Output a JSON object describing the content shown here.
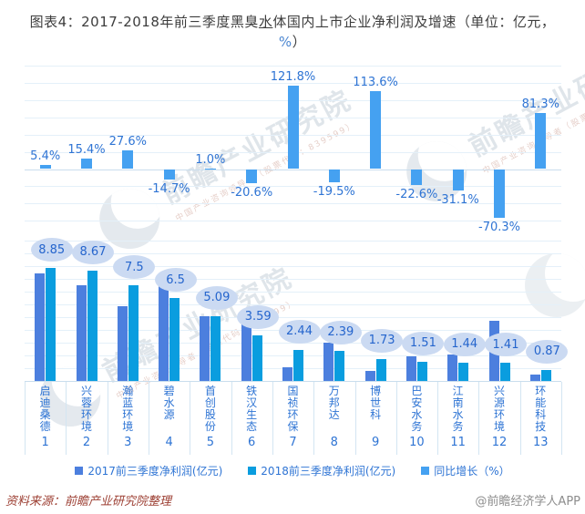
{
  "title": {
    "full": "图表4：2017-2018年前三季度黑臭水体国内上市企业净利润及增速（单位：亿元，%）",
    "part1": "图表4：2017-2018年前三季度黑臭",
    "underlined": "水",
    "part2": "体国内上市企业净利润及增速（单位：亿元，",
    "percent": "%",
    "part3": "）"
  },
  "watermark": {
    "brand": "前瞻产业研究院",
    "subtext": "中国产业咨询领导者（股票代码：839599）"
  },
  "colors": {
    "bar_2017": "#4C7FDE",
    "bar_2018": "#0A9DDF",
    "growth_bar": "#45A1F1",
    "label_blue": "#2E74D4",
    "bubble_fill": "#CBDAF2",
    "bubble_text": "#2565CD",
    "gridline": "#E4F0F9",
    "axis": "#C9DDED",
    "title_text": "#3D3D3D",
    "source_red": "#9C3E32",
    "credit_gray": "#8D8D8D"
  },
  "chart_data": [
    {
      "type": "bar",
      "name": "同比增长（%）",
      "categories": [
        "启迪桑德",
        "兴蓉环境",
        "瀚蓝环境",
        "碧水源",
        "首创股份",
        "铁汉生态",
        "国祯环保",
        "万邦达",
        "博世科",
        "巴安水务",
        "江南水务",
        "兴源环境",
        "环能科技"
      ],
      "values": [
        5.4,
        15.4,
        27.6,
        -14.7,
        1.0,
        -20.6,
        121.8,
        -19.5,
        113.6,
        -22.6,
        -31.1,
        -70.3,
        81.3
      ],
      "labels": [
        "5.4%",
        "15.4%",
        "27.6%",
        "-14.7%",
        "1.0%",
        "-20.6%",
        "121.8%",
        "-19.5%",
        "113.6%",
        "-22.6%",
        "-31.1%",
        "-70.3%",
        "81.3%"
      ],
      "ylim": [
        -75,
        150
      ],
      "grid_step": 25,
      "grid": true,
      "legend_position": "bottom"
    },
    {
      "type": "bar",
      "name": "前三季度净利润(亿元)",
      "categories": [
        "启迪桑德",
        "兴蓉环境",
        "瀚蓝环境",
        "碧水源",
        "首创股份",
        "铁汉生态",
        "国祯环保",
        "万邦达",
        "博世科",
        "巴安水务",
        "江南水务",
        "兴源环境",
        "环能科技"
      ],
      "ranks": [
        "1",
        "2",
        "3",
        "4",
        "5",
        "6",
        "7",
        "8",
        "9",
        "10",
        "11",
        "12",
        "13"
      ],
      "series": [
        {
          "name": "2017前三季度净利润(亿元)",
          "values": [
            8.4,
            7.51,
            5.88,
            7.62,
            5.04,
            4.52,
            1.1,
            2.97,
            0.81,
            1.95,
            2.09,
            4.75,
            0.48
          ]
        },
        {
          "name": "2018前三季度净利润(亿元)",
          "values": [
            8.85,
            8.67,
            7.5,
            6.5,
            5.09,
            3.59,
            2.44,
            2.39,
            1.73,
            1.51,
            1.44,
            1.41,
            0.87
          ]
        }
      ],
      "data_labels": [
        "8.85",
        "8.67",
        "7.5",
        "6.5",
        "5.09",
        "3.59",
        "2.44",
        "2.39",
        "1.73",
        "1.51",
        "1.44",
        "1.41",
        "0.87"
      ],
      "ylim": [
        0,
        11
      ],
      "grid_step": 1,
      "grid": true
    }
  ],
  "legend": {
    "items": [
      {
        "label": "2017前三季度净利润(亿元)",
        "color_key": "bar_2017"
      },
      {
        "label": "2018前三季度净利润(亿元)",
        "color_key": "bar_2018"
      },
      {
        "label": "同比增长（%）",
        "color_key": "growth_bar"
      }
    ]
  },
  "footer": {
    "source": "资料来源：前瞻产业研究院整理",
    "credit": "@前瞻经济学人APP"
  }
}
